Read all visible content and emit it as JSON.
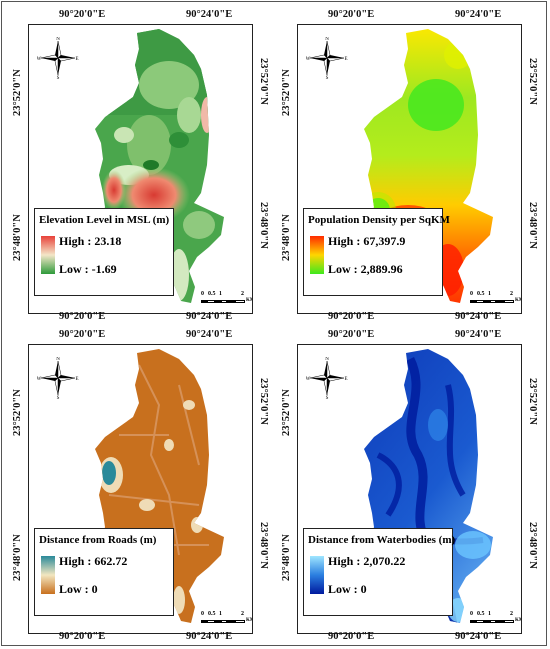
{
  "axis_labels": {
    "lon_left": "90°20'0\"E",
    "lon_right": "90°24'0\"E",
    "lat_top": "23°52'0\"N",
    "lat_bottom": "23°48'0\"N"
  },
  "compass": {
    "n": "N",
    "s": "S",
    "e": "E",
    "w": "W"
  },
  "scale_bar": {
    "ticks": [
      "0",
      "0.5",
      "1",
      "2"
    ],
    "unit": "KM"
  },
  "panels": [
    {
      "title": "Elevation Level in MSL (m)",
      "high": "High : 23.18",
      "low": "Low : -1.69",
      "colors": {
        "high": "#e8413a",
        "mid": "#f3e6c8",
        "low": "#2e9a3a"
      }
    },
    {
      "title": "Population Density per SqKM",
      "high": "High : 67,397.9",
      "low": "Low : 2,889.96",
      "colors": {
        "high": "#ff2a00",
        "mid": "#ffd500",
        "low": "#3ee81e"
      }
    },
    {
      "title": "Distance from Roads (m)",
      "high": "High : 662.72",
      "low": "Low : 0",
      "colors": {
        "high": "#2a8a9a",
        "mid": "#f2e6c0",
        "low": "#c8701e"
      }
    },
    {
      "title": "Distance from Waterbodies (m)",
      "high": "High : 2,070.22",
      "low": "Low : 0",
      "colors": {
        "high": "#9fe6ff",
        "mid": "#2b7fe0",
        "low": "#001a9e"
      }
    }
  ]
}
